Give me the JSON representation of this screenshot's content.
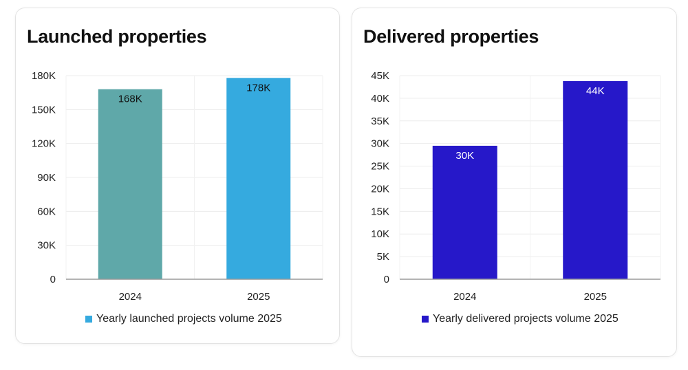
{
  "chart_data": [
    {
      "type": "bar",
      "title": "Launched properties",
      "categories": [
        "2024",
        "2025"
      ],
      "values": [
        168000,
        178000
      ],
      "value_labels": [
        "168K",
        "178K"
      ],
      "bar_colors": [
        "#5fa8a9",
        "#35aadf"
      ],
      "label_colors": [
        "#111111",
        "#111111"
      ],
      "ylim": [
        0,
        180000
      ],
      "yticks": [
        0,
        30000,
        60000,
        90000,
        120000,
        150000,
        180000
      ],
      "ytick_labels": [
        "0",
        "30K",
        "60K",
        "90K",
        "120K",
        "150K",
        "180K"
      ],
      "xlabel": "",
      "ylabel": "",
      "grid": true,
      "legend": {
        "label": "Yearly launched projects volume 2025",
        "color": "#35aadf",
        "placement": "bottom-center"
      }
    },
    {
      "type": "bar",
      "title": "Delivered properties",
      "categories": [
        "2024",
        "2025"
      ],
      "values": [
        29500,
        43800
      ],
      "value_labels": [
        "30K",
        "44K"
      ],
      "bar_colors": [
        "#2618c9",
        "#2618c9"
      ],
      "label_colors": [
        "#ffffff",
        "#ffffff"
      ],
      "ylim": [
        0,
        45000
      ],
      "yticks": [
        0,
        5000,
        10000,
        15000,
        20000,
        25000,
        30000,
        35000,
        40000,
        45000
      ],
      "ytick_labels": [
        "0",
        "5K",
        "10K",
        "15K",
        "20K",
        "25K",
        "30K",
        "35K",
        "40K",
        "45K"
      ],
      "xlabel": "",
      "ylabel": "",
      "grid": true,
      "legend": {
        "label": "Yearly delivered projects volume 2025",
        "color": "#2618c9",
        "placement": "bottom-center"
      }
    }
  ]
}
